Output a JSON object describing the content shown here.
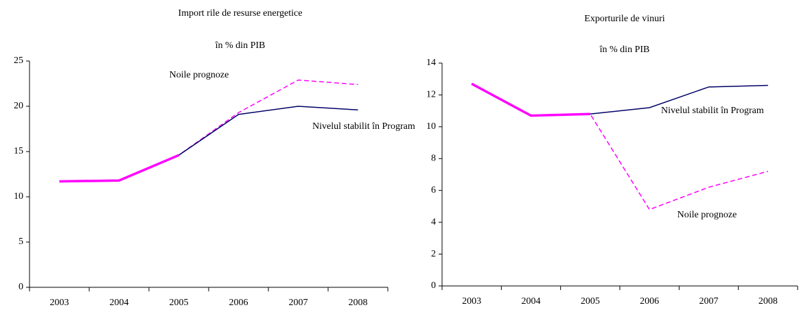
{
  "chart_data": [
    {
      "type": "line",
      "title": "Import rile de resurse energetice",
      "subtitle": "în % din PIB",
      "categories": [
        "2003",
        "2004",
        "2005",
        "2006",
        "2007",
        "2008"
      ],
      "series": [
        {
          "name": "Nivelul stabilit în Program",
          "color": "#000066",
          "dash": false,
          "values": [
            11.7,
            11.8,
            14.6,
            19.1,
            20.0,
            19.6
          ]
        },
        {
          "name": "Noile prognoze",
          "color": "#ff00ff",
          "dash": true,
          "values": [
            11.7,
            11.8,
            14.6,
            19.3,
            22.9,
            22.4
          ]
        }
      ],
      "ylim": [
        0,
        25
      ],
      "yticks": [
        0,
        5,
        10,
        15,
        20,
        25
      ],
      "grid": false
    },
    {
      "type": "line",
      "title": "Exporturile de vinuri",
      "subtitle": "în % din PIB",
      "categories": [
        "2003",
        "2004",
        "2005",
        "2006",
        "2007",
        "2008"
      ],
      "series": [
        {
          "name": "Nivelul stabilit în Program",
          "color": "#000066",
          "dash": false,
          "values": [
            12.7,
            10.7,
            10.8,
            11.2,
            12.5,
            12.6
          ]
        },
        {
          "name": "Noile prognoze",
          "color": "#ff00ff",
          "dash": true,
          "values": [
            12.7,
            10.7,
            10.8,
            4.8,
            6.2,
            7.2
          ]
        }
      ],
      "ylim": [
        0,
        14
      ],
      "yticks": [
        0,
        2,
        4,
        6,
        8,
        10,
        12,
        14
      ],
      "grid": false
    }
  ]
}
